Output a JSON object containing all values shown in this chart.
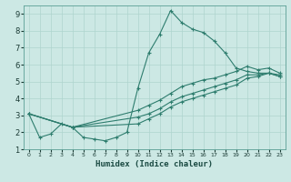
{
  "xlabel": "Humidex (Indice chaleur)",
  "xlim": [
    -0.5,
    23.5
  ],
  "ylim": [
    1,
    9.5
  ],
  "xticks": [
    0,
    1,
    2,
    3,
    4,
    5,
    6,
    7,
    8,
    9,
    10,
    11,
    12,
    13,
    14,
    15,
    16,
    17,
    18,
    19,
    20,
    21,
    22,
    23
  ],
  "yticks": [
    1,
    2,
    3,
    4,
    5,
    6,
    7,
    8,
    9
  ],
  "bg_color": "#cce8e4",
  "grid_color": "#aed4ce",
  "line_color": "#2e7d6e",
  "line_width": 0.8,
  "marker": "+",
  "marker_size": 3,
  "series": [
    {
      "x": [
        0,
        1,
        2,
        3,
        4,
        5,
        6,
        7,
        8,
        9,
        10,
        11,
        12,
        13,
        14,
        15,
        16,
        17,
        18,
        19,
        20,
        21,
        22,
        23
      ],
      "y": [
        3.1,
        1.7,
        1.9,
        2.5,
        2.3,
        1.7,
        1.6,
        1.5,
        1.7,
        2.0,
        4.6,
        6.7,
        7.8,
        9.2,
        8.5,
        8.1,
        7.9,
        7.4,
        6.7,
        5.8,
        5.6,
        5.5,
        5.5,
        5.4
      ]
    },
    {
      "x": [
        0,
        4,
        10,
        11,
        12,
        13,
        14,
        15,
        16,
        17,
        18,
        19,
        20,
        21,
        22,
        23
      ],
      "y": [
        3.1,
        2.3,
        3.3,
        3.6,
        3.9,
        4.3,
        4.7,
        4.9,
        5.1,
        5.2,
        5.4,
        5.6,
        5.9,
        5.7,
        5.8,
        5.5
      ]
    },
    {
      "x": [
        0,
        4,
        10,
        11,
        12,
        13,
        14,
        15,
        16,
        17,
        18,
        19,
        20,
        21,
        22,
        23
      ],
      "y": [
        3.1,
        2.3,
        2.9,
        3.1,
        3.4,
        3.8,
        4.1,
        4.3,
        4.5,
        4.7,
        4.9,
        5.1,
        5.4,
        5.4,
        5.5,
        5.3
      ]
    },
    {
      "x": [
        0,
        4,
        10,
        11,
        12,
        13,
        14,
        15,
        16,
        17,
        18,
        19,
        20,
        21,
        22,
        23
      ],
      "y": [
        3.1,
        2.3,
        2.5,
        2.8,
        3.1,
        3.5,
        3.8,
        4.0,
        4.2,
        4.4,
        4.6,
        4.8,
        5.2,
        5.3,
        5.5,
        5.3
      ]
    }
  ]
}
